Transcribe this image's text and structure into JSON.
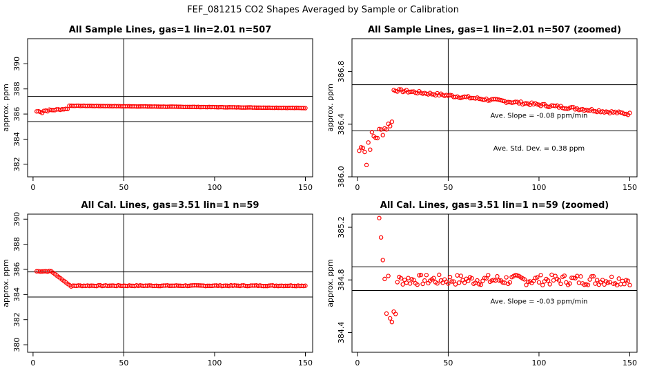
{
  "figure": {
    "title": "FEF_081215  CO2 Shapes Averaged by Sample or Calibration"
  },
  "chart_data": [
    {
      "type": "scatter",
      "title": "All Sample Lines, gas=1 lin=2.01 n=507",
      "xlabel": "",
      "ylabel": "approx. ppm",
      "xlim": [
        -3,
        154
      ],
      "ylim": [
        381,
        392
      ],
      "xticks": [
        0,
        50,
        100,
        150
      ],
      "yticks": [
        382,
        384,
        386,
        388,
        390
      ],
      "ytick_labels": [
        "382",
        "384",
        "386",
        "388",
        "390"
      ],
      "hlines": [
        387.4,
        385.4
      ],
      "vline": 50,
      "marker_color": "#ff0000",
      "model": {
        "kind": "sample",
        "base": 386.52,
        "n": 150,
        "start": 2,
        "scale": 1.0
      },
      "annotations": []
    },
    {
      "type": "scatter",
      "title": "All Sample Lines, gas=1 lin=2.01 n=507 (zoomed)",
      "xlabel": "",
      "ylabel": "approx. ppm",
      "xlim": [
        -3,
        154
      ],
      "ylim": [
        386.0,
        387.05
      ],
      "xticks": [
        0,
        50,
        100,
        150
      ],
      "yticks": [
        386.0,
        386.4,
        386.8
      ],
      "ytick_labels": [
        "386.0",
        "386.4",
        "386.8"
      ],
      "hlines": [
        386.7,
        386.35
      ],
      "vline": 50,
      "marker_color": "#ff0000",
      "model": {
        "kind": "sample",
        "base": 386.52,
        "n": 150,
        "start": 1,
        "scale": 1.0
      },
      "annotations": [
        {
          "text": "Ave. Slope = -0.08  ppm/min",
          "x": 100,
          "y": 386.45
        },
        {
          "text": "Ave. Std. Dev. = 0.38  ppm",
          "x": 100,
          "y": 386.2
        }
      ]
    },
    {
      "type": "scatter",
      "title": "All Cal. Lines, gas=3.51 lin=1 n=59",
      "xlabel": "",
      "ylabel": "approx. ppm",
      "xlim": [
        -3,
        154
      ],
      "ylim": [
        379.4,
        390.4
      ],
      "xticks": [
        0,
        50,
        100,
        150
      ],
      "yticks": [
        380,
        382,
        384,
        386,
        388,
        390
      ],
      "ytick_labels": [
        "380",
        "382",
        "384",
        "386",
        "388",
        "390"
      ],
      "hlines": [
        385.8,
        383.8
      ],
      "vline": 50,
      "marker_color": "#ff0000",
      "model": {
        "kind": "cal_smooth",
        "base": 384.8,
        "n": 150,
        "start": 2,
        "scale": 1.0
      },
      "annotations": []
    },
    {
      "type": "scatter",
      "title": "All Cal. Lines, gas=3.51 lin=1 n=59 (zoomed)",
      "xlabel": "",
      "ylabel": "approx. ppm",
      "xlim": [
        -3,
        154
      ],
      "ylim": [
        384.25,
        385.3
      ],
      "xticks": [
        0,
        50,
        100,
        150
      ],
      "yticks": [
        384.4,
        384.8,
        385.2
      ],
      "ytick_labels": [
        "384.4",
        "384.8",
        "385.2"
      ],
      "hlines": [
        384.9,
        384.72
      ],
      "vline": 50,
      "marker_color": "#ff0000",
      "model": {
        "kind": "cal_noisy",
        "base": 384.8,
        "n": 150,
        "start": 12,
        "scale": 1.0
      },
      "annotations": [
        {
          "text": "Ave. Slope = -0.03  ppm/min",
          "x": 100,
          "y": 384.62
        }
      ]
    }
  ]
}
